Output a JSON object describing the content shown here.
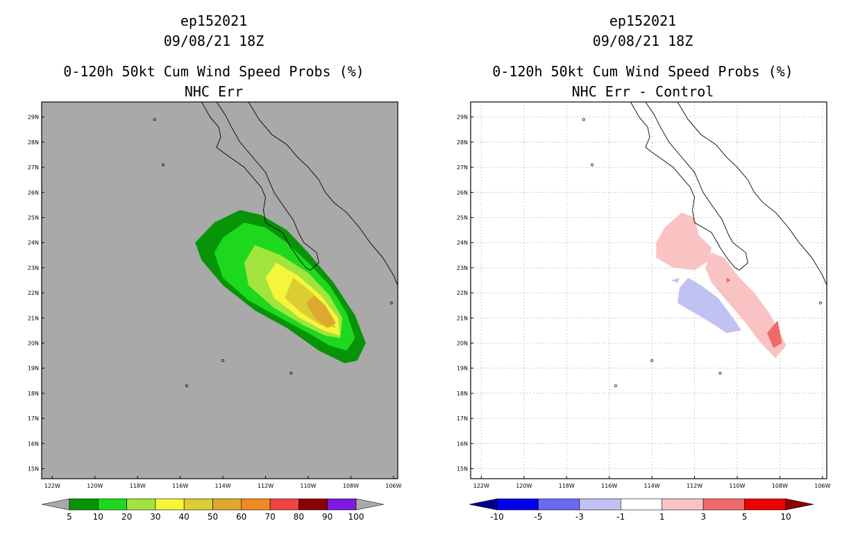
{
  "chart_data": [
    {
      "type": "contour_map",
      "storm_id": "ep152021",
      "date": "09/08/21 18Z",
      "title": "0-120h 50kt Cum Wind Speed Probs (%)",
      "subtitle": "NHC Err",
      "lon_ticks": [
        "122W",
        "120W",
        "118W",
        "116W",
        "114W",
        "112W",
        "110W",
        "108W",
        "106W"
      ],
      "lat_ticks": [
        "29N",
        "28N",
        "27N",
        "26N",
        "25N",
        "24N",
        "23N",
        "22N",
        "21N",
        "20N",
        "19N",
        "18N",
        "17N",
        "16N",
        "15N"
      ],
      "lon_range": [
        -122.5,
        -105.8
      ],
      "lat_range": [
        14.6,
        29.6
      ],
      "background": "#a9a9a9",
      "colorbar": {
        "labels": [
          "5",
          "10",
          "20",
          "30",
          "40",
          "50",
          "60",
          "70",
          "80",
          "90",
          "100"
        ],
        "colors": [
          "#a9a9a9",
          "#079407",
          "#1ed81e",
          "#a1e43e",
          "#f5f53b",
          "#dccd32",
          "#dda82d",
          "#ef8a24",
          "#f04545",
          "#8b0000",
          "#7f18e0",
          "#a9a9a9"
        ]
      },
      "contours": [
        {
          "level": 5,
          "color": "#079407",
          "points": [
            [
              -114.4,
              24.8
            ],
            [
              -113.2,
              25.3
            ],
            [
              -112.2,
              25.1
            ],
            [
              -111.0,
              24.5
            ],
            [
              -110.0,
              23.6
            ],
            [
              -108.8,
              22.4
            ],
            [
              -107.8,
              21.1
            ],
            [
              -107.3,
              20.0
            ],
            [
              -107.7,
              19.3
            ],
            [
              -108.3,
              19.2
            ],
            [
              -109.5,
              19.7
            ],
            [
              -111.0,
              20.6
            ],
            [
              -112.5,
              21.3
            ],
            [
              -114.0,
              22.3
            ],
            [
              -115.0,
              23.3
            ],
            [
              -115.3,
              24.0
            ]
          ]
        },
        {
          "level": 10,
          "color": "#1ed81e",
          "points": [
            [
              -113.0,
              24.8
            ],
            [
              -112.0,
              24.6
            ],
            [
              -111.0,
              24.0
            ],
            [
              -110.0,
              23.2
            ],
            [
              -109.0,
              22.3
            ],
            [
              -108.2,
              21.2
            ],
            [
              -107.8,
              20.2
            ],
            [
              -108.2,
              19.7
            ],
            [
              -109.0,
              19.9
            ],
            [
              -110.0,
              20.4
            ],
            [
              -111.3,
              21.0
            ],
            [
              -112.8,
              21.7
            ],
            [
              -114.0,
              22.6
            ],
            [
              -114.4,
              23.6
            ],
            [
              -114.0,
              24.2
            ]
          ]
        },
        {
          "level": 20,
          "color": "#a1e43e",
          "points": [
            [
              -112.5,
              23.9
            ],
            [
              -111.3,
              23.5
            ],
            [
              -110.0,
              22.8
            ],
            [
              -109.0,
              21.9
            ],
            [
              -108.4,
              21.0
            ],
            [
              -108.5,
              20.2
            ],
            [
              -109.2,
              20.3
            ],
            [
              -110.2,
              20.7
            ],
            [
              -111.6,
              21.4
            ],
            [
              -112.8,
              22.3
            ],
            [
              -113.0,
              23.2
            ]
          ]
        },
        {
          "level": 30,
          "color": "#f5f53b",
          "points": [
            [
              -111.5,
              23.2
            ],
            [
              -110.5,
              22.7
            ],
            [
              -109.4,
              21.9
            ],
            [
              -108.6,
              21.0
            ],
            [
              -108.5,
              20.3
            ],
            [
              -109.3,
              20.5
            ],
            [
              -110.4,
              21.0
            ],
            [
              -111.6,
              21.8
            ],
            [
              -112.0,
              22.6
            ]
          ]
        },
        {
          "level": 40,
          "color": "#dccd32",
          "points": [
            [
              -110.7,
              22.6
            ],
            [
              -109.8,
              22.0
            ],
            [
              -109.0,
              21.2
            ],
            [
              -108.7,
              20.6
            ],
            [
              -109.4,
              20.7
            ],
            [
              -110.3,
              21.2
            ],
            [
              -111.1,
              21.8
            ]
          ]
        },
        {
          "level": 50,
          "color": "#dda82d",
          "points": [
            [
              -109.7,
              21.9
            ],
            [
              -109.2,
              21.5
            ],
            [
              -108.7,
              20.8
            ],
            [
              -109.1,
              20.6
            ],
            [
              -109.7,
              21.0
            ],
            [
              -110.1,
              21.6
            ]
          ]
        }
      ]
    },
    {
      "type": "contour_map",
      "storm_id": "ep152021",
      "date": "09/08/21 18Z",
      "title": "0-120h 50kt Cum Wind Speed Probs (%)",
      "subtitle": "NHC Err - Control",
      "lon_ticks": [
        "122W",
        "120W",
        "118W",
        "116W",
        "114W",
        "112W",
        "110W",
        "108W",
        "106W"
      ],
      "lat_ticks": [
        "29N",
        "28N",
        "27N",
        "26N",
        "25N",
        "24N",
        "23N",
        "22N",
        "21N",
        "20N",
        "19N",
        "18N",
        "17N",
        "16N",
        "15N"
      ],
      "lon_range": [
        -122.5,
        -105.8
      ],
      "lat_range": [
        14.6,
        29.6
      ],
      "background": "#ffffff",
      "grid": "dotted",
      "colorbar": {
        "labels": [
          "-10",
          "-5",
          "-3",
          "-1",
          "1",
          "3",
          "5",
          "10"
        ],
        "colors": [
          "#00008b",
          "#0000ee",
          "#6a6aee",
          "#c1c1f3",
          "#ffffff",
          "#f9c3c3",
          "#ef6a6a",
          "#ee0000",
          "#8b0000"
        ]
      },
      "contours": [
        {
          "level": 1,
          "color": "#f9c3c3",
          "points": [
            [
              -113.4,
              24.6
            ],
            [
              -112.6,
              25.2
            ],
            [
              -112.0,
              25.0
            ],
            [
              -111.8,
              24.3
            ],
            [
              -111.2,
              23.8
            ],
            [
              -111.3,
              23.3
            ],
            [
              -112.0,
              22.9
            ],
            [
              -113.0,
              23.0
            ],
            [
              -113.8,
              23.4
            ],
            [
              -113.8,
              24.0
            ]
          ]
        },
        {
          "level": 1,
          "color": "#f9c3c3",
          "points": [
            [
              -111.2,
              23.6
            ],
            [
              -110.6,
              23.4
            ],
            [
              -110.0,
              22.7
            ],
            [
              -109.2,
              22.0
            ],
            [
              -108.5,
              21.2
            ],
            [
              -108.1,
              20.6
            ],
            [
              -107.7,
              19.9
            ],
            [
              -108.2,
              19.4
            ],
            [
              -108.9,
              20.0
            ],
            [
              -109.6,
              20.8
            ],
            [
              -110.4,
              21.6
            ],
            [
              -111.2,
              22.4
            ],
            [
              -111.5,
              23.0
            ]
          ]
        },
        {
          "level": 3,
          "color": "#ef6a6a",
          "points": [
            [
              -108.1,
              20.9
            ],
            [
              -107.9,
              20.0
            ],
            [
              -108.3,
              19.8
            ],
            [
              -108.6,
              20.4
            ]
          ]
        },
        {
          "level": 3,
          "color": "#ef6a6a",
          "points": [
            [
              -110.5,
              22.6
            ],
            [
              -110.3,
              22.5
            ],
            [
              -110.5,
              22.4
            ]
          ]
        },
        {
          "level": -1,
          "color": "#c1c1f3",
          "points": [
            [
              -112.3,
              22.6
            ],
            [
              -111.7,
              22.3
            ],
            [
              -110.9,
              21.8
            ],
            [
              -110.2,
              21.0
            ],
            [
              -109.8,
              20.5
            ],
            [
              -110.5,
              20.4
            ],
            [
              -111.2,
              20.8
            ],
            [
              -112.0,
              21.2
            ],
            [
              -112.8,
              21.6
            ],
            [
              -112.7,
              22.2
            ]
          ]
        },
        {
          "level": -1,
          "color": "#c1c1f3",
          "points": [
            [
              -113.1,
              22.5
            ],
            [
              -112.7,
              22.6
            ],
            [
              -112.8,
              22.4
            ]
          ]
        }
      ]
    }
  ],
  "coastline_label": "coastline-outline"
}
